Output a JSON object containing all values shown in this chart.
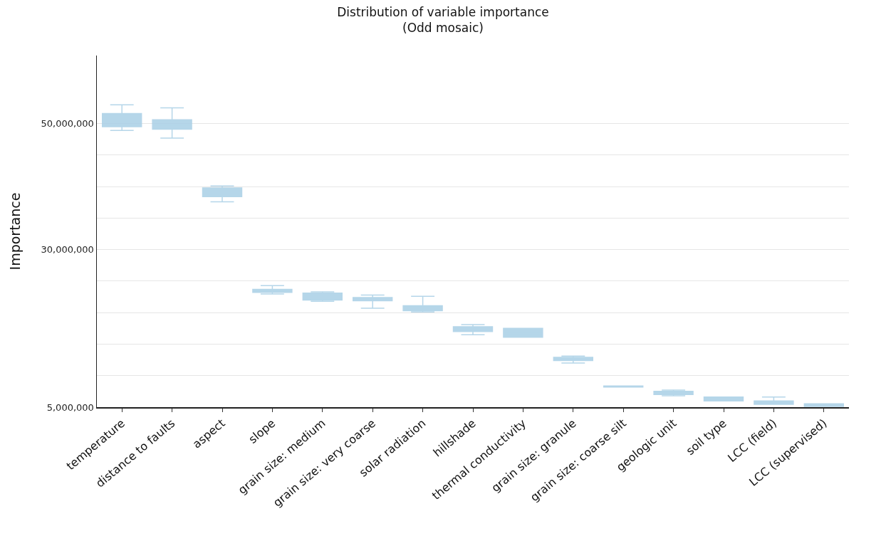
{
  "chart_data": {
    "type": "box",
    "title": "Distribution of variable importance\n(Odd mosaic)",
    "ylabel": "Importance",
    "categories": [
      "temperature",
      "distance to faults",
      "aspect",
      "slope",
      "grain size: medium",
      "grain size: very coarse",
      "solar radiation",
      "hillshade",
      "thermal conductivity",
      "grain size: granule",
      "grain size: coarse silt",
      "geologic unit",
      "soil type",
      "LCC (field)",
      "LCC (supervised)"
    ],
    "boxes": [
      {
        "low": 48900000,
        "q1": 49500000,
        "median": 49700000,
        "q3": 51600000,
        "high": 52970000
      },
      {
        "low": 47700000,
        "q1": 49100000,
        "median": 49800000,
        "q3": 50600000,
        "high": 52500000
      },
      {
        "low": 37600000,
        "q1": 38400000,
        "median": 39100000,
        "q3": 39800000,
        "high": 40100000
      },
      {
        "low": 22950000,
        "q1": 23200000,
        "median": 23400000,
        "q3": 23700000,
        "high": 24300000
      },
      {
        "low": 21800000,
        "q1": 22000000,
        "median": 22600000,
        "q3": 23100000,
        "high": 23300000
      },
      {
        "low": 20700000,
        "q1": 21900000,
        "median": 22200000,
        "q3": 22400000,
        "high": 22800000
      },
      {
        "low": 20100000,
        "q1": 20300000,
        "median": 20800000,
        "q3": 21100000,
        "high": 22600000
      },
      {
        "low": 16500000,
        "q1": 17000000,
        "median": 17400000,
        "q3": 17750000,
        "high": 18100000
      },
      {
        "low": 16100000,
        "q1": 16100000,
        "median": 16700000,
        "q3": 17500000,
        "high": 17500000
      },
      {
        "low": 12000000,
        "q1": 12400000,
        "median": 12700000,
        "q3": 12900000,
        "high": 13100000
      },
      {
        "low": 8200000,
        "q1": 8200000,
        "median": 8300000,
        "q3": 8350000,
        "high": 8350000
      },
      {
        "low": 6800000,
        "q1": 7000000,
        "median": 7300000,
        "q3": 7500000,
        "high": 7700000
      },
      {
        "low": 6000000,
        "q1": 6000000,
        "median": 6350000,
        "q3": 6600000,
        "high": 6600000
      },
      {
        "low": 5450000,
        "q1": 5450000,
        "median": 5800000,
        "q3": 6000000,
        "high": 6600000
      },
      {
        "low": 5100000,
        "q1": 5100000,
        "median": 5300000,
        "q3": 5550000,
        "high": 5550000
      }
    ],
    "color": "#a9cfe6",
    "ylim": [
      5000000,
      60800000
    ],
    "yticks": [
      {
        "value": 5000000,
        "label": "5,000,000"
      },
      {
        "value": 10000000,
        "label": null
      },
      {
        "value": 15000000,
        "label": null
      },
      {
        "value": 20000000,
        "label": null
      },
      {
        "value": 25000000,
        "label": null
      },
      {
        "value": 30000000,
        "label": "30,000,000"
      },
      {
        "value": 35000000,
        "label": null
      },
      {
        "value": 40000000,
        "label": null
      },
      {
        "value": 45000000,
        "label": null
      },
      {
        "value": 50000000,
        "label": "50,000,000"
      }
    ],
    "grid": "y"
  }
}
